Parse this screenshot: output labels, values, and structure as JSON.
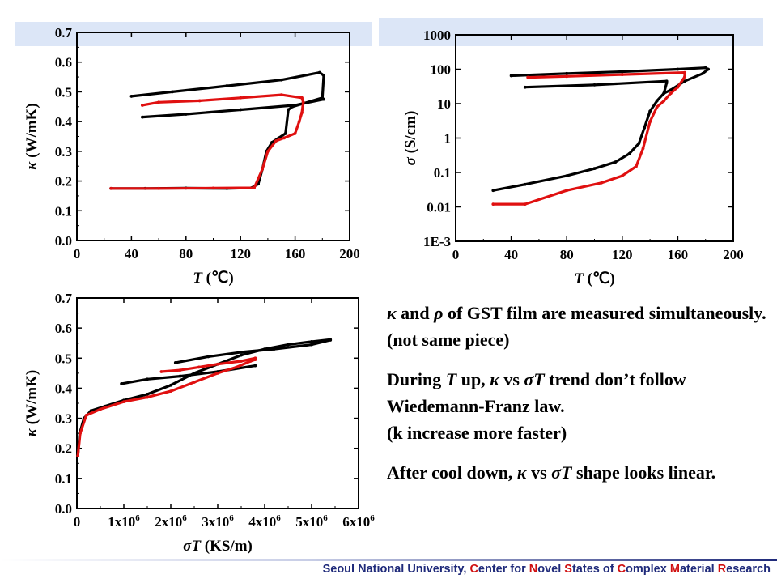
{
  "chart_data": [
    {
      "id": "kappa-T",
      "type": "scatter",
      "title": "",
      "xlabel_var": "T",
      "xlabel_unit": "(℃)",
      "ylabel_sym": "κ",
      "ylabel_unit": "(W/mK)",
      "xlim": [
        0,
        200
      ],
      "ylim": [
        0,
        0.7
      ],
      "xticks": [
        0,
        40,
        80,
        120,
        160,
        200
      ],
      "xtick_labels": [
        "0",
        "40",
        "80",
        "120",
        "160",
        "200"
      ],
      "yticks": [
        0,
        0.1,
        0.2,
        0.3,
        0.4,
        0.5,
        0.6,
        0.7
      ],
      "ytick_labels": [
        "0.0",
        "0.1",
        "0.2",
        "0.3",
        "0.4",
        "0.5",
        "0.6",
        "0.7"
      ],
      "grid": false,
      "series": [
        {
          "color": "#000000",
          "points": [
            [
              25,
              0.175
            ],
            [
              50,
              0.175
            ],
            [
              80,
              0.176
            ],
            [
              110,
              0.175
            ],
            [
              128,
              0.177
            ],
            [
              133,
              0.19
            ],
            [
              136,
              0.24
            ],
            [
              139,
              0.3
            ],
            [
              143,
              0.33
            ],
            [
              148,
              0.345
            ],
            [
              153,
              0.36
            ],
            [
              155,
              0.44
            ],
            [
              158,
              0.45
            ],
            [
              180,
              0.48
            ],
            [
              181,
              0.555
            ],
            [
              178,
              0.565
            ],
            [
              150,
              0.54
            ],
            [
              110,
              0.52
            ],
            [
              70,
              0.5
            ],
            [
              40,
              0.485
            ]
          ]
        },
        {
          "color": "#000000",
          "points": [
            [
              48,
              0.415
            ],
            [
              80,
              0.425
            ],
            [
              120,
              0.44
            ],
            [
              160,
              0.455
            ],
            [
              181,
              0.475
            ]
          ]
        },
        {
          "color": "#e01010",
          "points": [
            [
              25,
              0.175
            ],
            [
              60,
              0.175
            ],
            [
              100,
              0.176
            ],
            [
              130,
              0.177
            ],
            [
              136,
              0.24
            ],
            [
              140,
              0.3
            ],
            [
              146,
              0.335
            ],
            [
              152,
              0.345
            ],
            [
              160,
              0.36
            ],
            [
              163,
              0.4
            ],
            [
              165,
              0.43
            ],
            [
              166,
              0.465
            ],
            [
              165,
              0.48
            ],
            [
              150,
              0.49
            ],
            [
              120,
              0.48
            ],
            [
              90,
              0.47
            ],
            [
              60,
              0.465
            ],
            [
              48,
              0.455
            ]
          ]
        }
      ]
    },
    {
      "id": "sigma-T",
      "type": "scatter",
      "title": "",
      "xlabel_var": "T",
      "xlabel_unit": "(℃)",
      "ylabel_sym": "σ",
      "ylabel_unit": "(S/cm)",
      "scale_y": "log",
      "xlim": [
        0,
        200
      ],
      "ylim": [
        0.001,
        1000
      ],
      "xticks": [
        0,
        40,
        80,
        120,
        160,
        200
      ],
      "xtick_labels": [
        "0",
        "40",
        "80",
        "120",
        "160",
        "200"
      ],
      "yticks": [
        0.001,
        0.01,
        0.1,
        1,
        10,
        100,
        1000
      ],
      "ytick_labels": [
        "1E-3",
        "0.01",
        "0.1",
        "1",
        "10",
        "100",
        "1000"
      ],
      "grid": false,
      "series": [
        {
          "color": "#000000",
          "points": [
            [
              27,
              0.03
            ],
            [
              50,
              0.045
            ],
            [
              80,
              0.08
            ],
            [
              100,
              0.13
            ],
            [
              115,
              0.2
            ],
            [
              125,
              0.35
            ],
            [
              132,
              0.7
            ],
            [
              136,
              2
            ],
            [
              140,
              6
            ],
            [
              145,
              12
            ],
            [
              150,
              20
            ],
            [
              152,
              40
            ],
            [
              152,
              45
            ],
            [
              100,
              35
            ],
            [
              50,
              30
            ]
          ]
        },
        {
          "color": "#000000",
          "points": [
            [
              40,
              65
            ],
            [
              80,
              75
            ],
            [
              120,
              85
            ],
            [
              160,
              100
            ],
            [
              180,
              110
            ],
            [
              182,
              100
            ],
            [
              178,
              75
            ],
            [
              165,
              45
            ],
            [
              155,
              25
            ],
            [
              150,
              20
            ]
          ]
        },
        {
          "color": "#e01010",
          "points": [
            [
              27,
              0.012
            ],
            [
              50,
              0.012
            ],
            [
              80,
              0.03
            ],
            [
              105,
              0.05
            ],
            [
              120,
              0.08
            ],
            [
              130,
              0.15
            ],
            [
              135,
              0.5
            ],
            [
              140,
              3
            ],
            [
              145,
              8
            ],
            [
              150,
              12
            ],
            [
              155,
              20
            ],
            [
              160,
              30
            ],
            [
              165,
              60
            ],
            [
              165,
              80
            ],
            [
              120,
              70
            ],
            [
              80,
              62
            ],
            [
              52,
              58
            ]
          ]
        }
      ]
    },
    {
      "id": "kappa-sigmaT",
      "type": "scatter",
      "title": "",
      "xlabel_sym": "σT",
      "xlabel_unit": "(KS/m)",
      "ylabel_sym": "κ",
      "ylabel_unit": "(W/mK)",
      "xlim": [
        0,
        6000000
      ],
      "ylim": [
        0,
        0.7
      ],
      "xticks": [
        0,
        1000000,
        2000000,
        3000000,
        4000000,
        5000000,
        6000000
      ],
      "xtick_labels": [
        "0",
        "1x10",
        "2x10",
        "3x10",
        "4x10",
        "5x10",
        "6x10"
      ],
      "xtick_exp": [
        "",
        "6",
        "6",
        "6",
        "6",
        "6",
        "6"
      ],
      "yticks": [
        0,
        0.1,
        0.2,
        0.3,
        0.4,
        0.5,
        0.6,
        0.7
      ],
      "ytick_labels": [
        "0.0",
        "0.1",
        "0.2",
        "0.3",
        "0.4",
        "0.5",
        "0.6",
        "0.7"
      ],
      "grid": false,
      "series": [
        {
          "color": "#000000",
          "points": [
            [
              20000,
              0.175
            ],
            [
              60000,
              0.25
            ],
            [
              150000,
              0.3
            ],
            [
              300000,
              0.325
            ],
            [
              600000,
              0.34
            ],
            [
              1000000,
              0.36
            ],
            [
              1500000,
              0.38
            ],
            [
              2000000,
              0.41
            ],
            [
              2500000,
              0.45
            ],
            [
              3000000,
              0.48
            ],
            [
              3500000,
              0.51
            ],
            [
              4000000,
              0.53
            ],
            [
              4500000,
              0.545
            ],
            [
              5000000,
              0.555
            ],
            [
              5400000,
              0.562
            ]
          ]
        },
        {
          "color": "#000000",
          "points": [
            [
              950000,
              0.415
            ],
            [
              1500000,
              0.43
            ],
            [
              2200000,
              0.44
            ],
            [
              3000000,
              0.455
            ],
            [
              3800000,
              0.475
            ]
          ]
        },
        {
          "color": "#000000",
          "points": [
            [
              2100000,
              0.485
            ],
            [
              2800000,
              0.505
            ],
            [
              3500000,
              0.52
            ],
            [
              4200000,
              0.53
            ],
            [
              5000000,
              0.545
            ],
            [
              5400000,
              0.56
            ]
          ]
        },
        {
          "color": "#e01010",
          "points": [
            [
              20000,
              0.175
            ],
            [
              70000,
              0.25
            ],
            [
              200000,
              0.31
            ],
            [
              500000,
              0.33
            ],
            [
              1000000,
              0.355
            ],
            [
              1500000,
              0.37
            ],
            [
              2000000,
              0.39
            ],
            [
              2500000,
              0.42
            ],
            [
              3000000,
              0.45
            ],
            [
              3400000,
              0.47
            ],
            [
              3700000,
              0.49
            ],
            [
              3800000,
              0.495
            ]
          ]
        },
        {
          "color": "#e01010",
          "points": [
            [
              1800000,
              0.455
            ],
            [
              2200000,
              0.46
            ],
            [
              2600000,
              0.47
            ],
            [
              3000000,
              0.48
            ],
            [
              3500000,
              0.49
            ],
            [
              3800000,
              0.5
            ]
          ]
        }
      ]
    }
  ],
  "notes": {
    "line1_sym_kappa": "κ",
    "line1_and": " and ",
    "line1_sym_rho": "ρ",
    "line1_rest": " of GST film are measured simultaneously. (not same piece)",
    "line2_a": "During ",
    "line2_T": "T",
    "line2_b": " up, ",
    "line2_kappa": "κ",
    "line2_c": " vs ",
    "line2_sigmaT": "σT",
    "line2_d": " trend don’t follow Wiedemann-Franz law.",
    "line3": "(k increase more faster)",
    "line4_a": "After cool down, ",
    "line4_kappa": "κ",
    "line4_b": " vs ",
    "line4_sigmaT": "σT",
    "line4_c": " shape looks linear."
  },
  "footer": {
    "part1": "Seoul National University, ",
    "c1": "C",
    "part2": "enter for ",
    "c2": "N",
    "part3": "ovel ",
    "c3": "S",
    "part4": "tates of ",
    "c4": "C",
    "part5": "omplex ",
    "c5": "M",
    "part6": "aterial ",
    "c6": "R",
    "part7": "esearch"
  },
  "colors": {
    "accent_red": "#d01010",
    "footer_blue": "#1f2a7a",
    "band": "#dce6f7"
  }
}
